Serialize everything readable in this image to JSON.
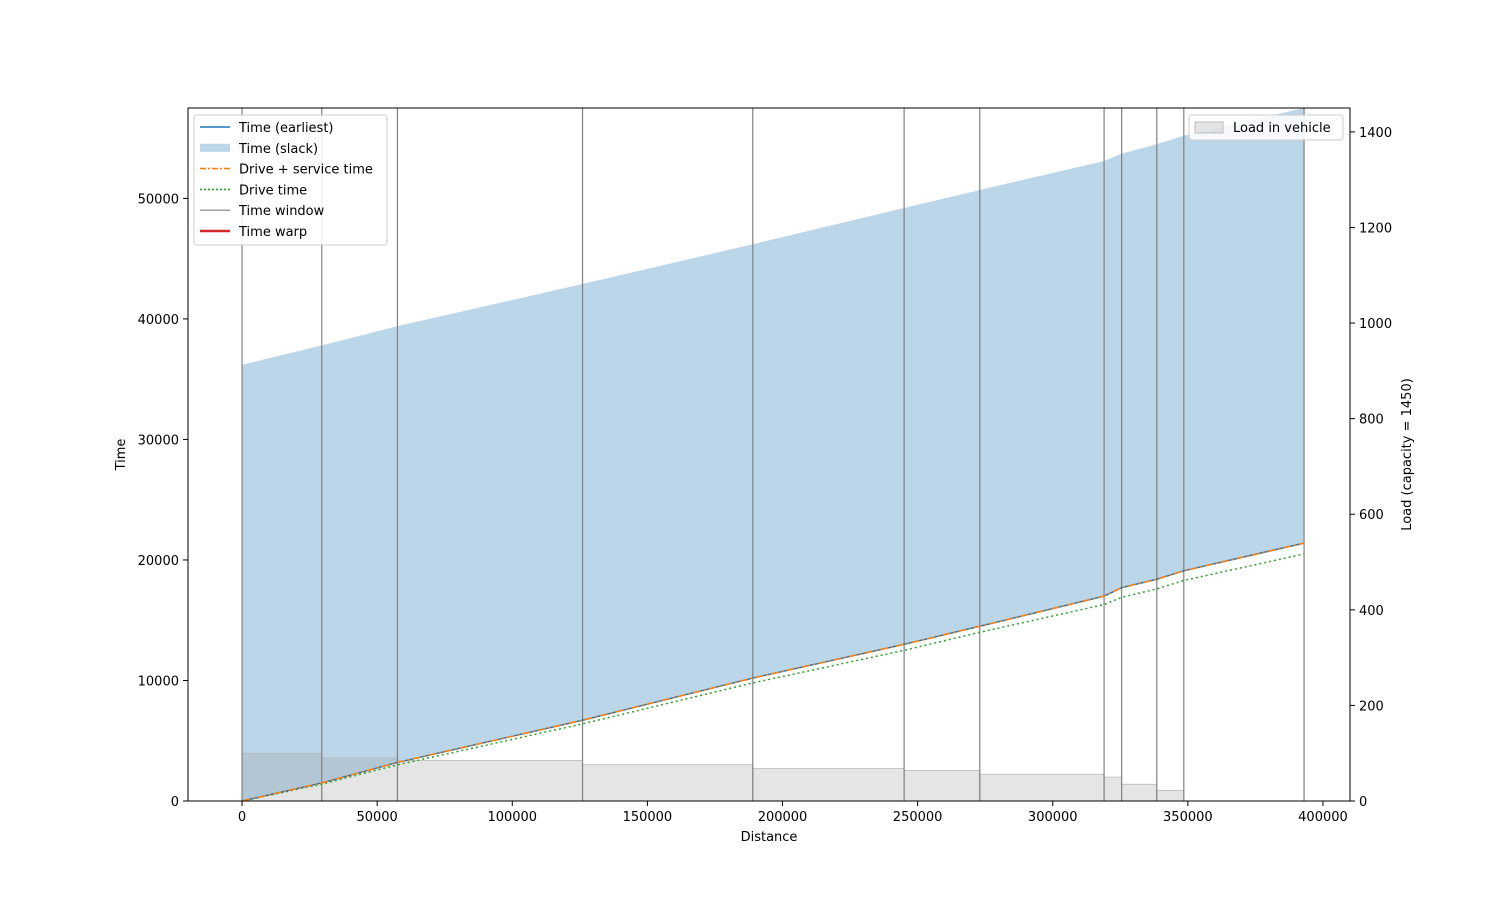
{
  "chart_data": {
    "type": "line",
    "xlabel": "Distance",
    "ylabel": "Time",
    "y2label": "Load (capacity = 1450)",
    "xlim": [
      -20000,
      410000
    ],
    "ylim": [
      0,
      57500
    ],
    "y2lim": [
      0,
      1450
    ],
    "x_ticks": [
      0,
      50000,
      100000,
      150000,
      200000,
      250000,
      300000,
      350000,
      400000
    ],
    "y_ticks": [
      0,
      10000,
      20000,
      30000,
      40000,
      50000
    ],
    "y2_ticks": [
      0,
      200,
      400,
      600,
      800,
      1000,
      1200,
      1400
    ],
    "grid": false,
    "legend_position": "top-left",
    "legend2_position": "top-right",
    "colors": {
      "earliest": "#1f77b4",
      "slack": "#1f77b4",
      "drive_service": "#ff7f0e",
      "drive": "#2ca02c",
      "time_window": "#808080",
      "time_warp": "#d62728",
      "load": "#e4e4e4"
    },
    "legend": [
      {
        "label": "Time (earliest)",
        "key": "earliest",
        "style": "solid"
      },
      {
        "label": "Time (slack)",
        "key": "slack",
        "style": "area"
      },
      {
        "label": "Drive + service time",
        "key": "drive_service",
        "style": "dashdot"
      },
      {
        "label": "Drive time",
        "key": "drive",
        "style": "dotted"
      },
      {
        "label": "Time window",
        "key": "time_window",
        "style": "thin"
      },
      {
        "label": "Time warp",
        "key": "time_warp",
        "style": "solid"
      }
    ],
    "legend2": [
      {
        "label": "Load in vehicle",
        "key": "load"
      }
    ],
    "stops_distance": [
      0,
      29500,
      57500,
      126000,
      189000,
      245000,
      273000,
      319000,
      325500,
      338500,
      348500,
      393000
    ],
    "time_earliest": [
      0,
      1500,
      3200,
      6700,
      10200,
      13000,
      14500,
      17000,
      17700,
      18400,
      19100,
      21400
    ],
    "time_latest": [
      36200,
      37800,
      39400,
      42900,
      46200,
      49200,
      50700,
      53100,
      53700,
      54500,
      55200,
      57500
    ],
    "drive_service_time": [
      0,
      1500,
      3200,
      6700,
      10200,
      13000,
      14500,
      17000,
      17700,
      18400,
      19100,
      21400
    ],
    "drive_time": [
      0,
      1400,
      3000,
      6400,
      9800,
      12500,
      14000,
      16300,
      16900,
      17600,
      18300,
      20500
    ],
    "time_window_lines": [
      0,
      29500,
      57500,
      126000,
      189000,
      245000,
      273000,
      319000,
      325500,
      338500,
      348500,
      393000
    ],
    "load_segments": [
      {
        "x0": 0,
        "x1": 29500,
        "load": 100
      },
      {
        "x0": 29500,
        "x1": 57500,
        "load": 90
      },
      {
        "x0": 57500,
        "x1": 126000,
        "load": 85
      },
      {
        "x0": 126000,
        "x1": 189000,
        "load": 76
      },
      {
        "x0": 189000,
        "x1": 245000,
        "load": 68
      },
      {
        "x0": 245000,
        "x1": 273000,
        "load": 64
      },
      {
        "x0": 273000,
        "x1": 319000,
        "load": 56
      },
      {
        "x0": 319000,
        "x1": 325500,
        "load": 50
      },
      {
        "x0": 325500,
        "x1": 338500,
        "load": 35
      },
      {
        "x0": 338500,
        "x1": 348500,
        "load": 22
      }
    ]
  }
}
